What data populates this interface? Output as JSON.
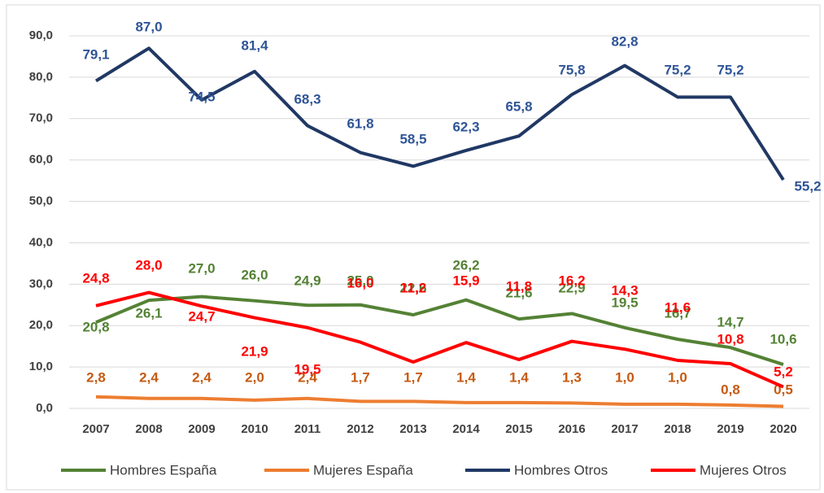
{
  "chart_data": {
    "type": "line",
    "categories": [
      "2007",
      "2008",
      "2009",
      "2010",
      "2011",
      "2012",
      "2013",
      "2014",
      "2015",
      "2016",
      "2017",
      "2018",
      "2019",
      "2020"
    ],
    "series": [
      {
        "name": "Hombres España",
        "color": "#548235",
        "values": [
          20.8,
          26.1,
          27.0,
          26.0,
          24.9,
          25.0,
          22.6,
          26.2,
          21.6,
          22.9,
          19.5,
          16.7,
          14.7,
          10.6
        ],
        "value_labels": [
          "20,8",
          "26,1",
          "27,0",
          "26,0",
          "24,9",
          "25,0",
          "22,6",
          "26,2",
          "21,6",
          "22,9",
          "19,5",
          "16,7",
          "14,7",
          "10,6"
        ]
      },
      {
        "name": "Mujeres España",
        "color": "#ed7d31",
        "values": [
          2.8,
          2.4,
          2.4,
          2.0,
          2.4,
          1.7,
          1.7,
          1.4,
          1.4,
          1.3,
          1.0,
          1.0,
          0.8,
          0.5
        ],
        "value_labels": [
          "2,8",
          "2,4",
          "2,4",
          "2,0",
          "2,4",
          "1,7",
          "1,7",
          "1,4",
          "1,4",
          "1,3",
          "1,0",
          "1,0",
          "0,8",
          "0,5"
        ]
      },
      {
        "name": "Hombres Otros",
        "color": "#203864",
        "values": [
          79.1,
          87.0,
          74.5,
          81.4,
          68.3,
          61.8,
          58.5,
          62.3,
          65.8,
          75.8,
          82.8,
          75.2,
          75.2,
          55.2
        ],
        "value_labels": [
          "79,1",
          "87,0",
          "74,5",
          "81,4",
          "68,3",
          "61,8",
          "58,5",
          "62,3",
          "65,8",
          "75,8",
          "82,8",
          "75,2",
          "75,2",
          "55,2"
        ]
      },
      {
        "name": "Mujeres Otros",
        "color": "#ff0000",
        "values": [
          24.8,
          28.0,
          24.7,
          21.9,
          19.5,
          16.0,
          11.2,
          15.9,
          11.8,
          16.2,
          14.3,
          11.6,
          10.8,
          5.2
        ],
        "value_labels": [
          "24,8",
          "28,0",
          "24,7",
          "21,9",
          "19,5",
          "16,0",
          "11,2",
          "15,9",
          "11,8",
          "16,2",
          "14,3",
          "11,6",
          "10,8",
          "5,2"
        ]
      }
    ],
    "ylim": [
      0,
      90
    ],
    "yticks": [
      {
        "value": 0,
        "label": "0,0"
      },
      {
        "value": 10,
        "label": "10,0"
      },
      {
        "value": 20,
        "label": "20,0"
      },
      {
        "value": 30,
        "label": "30,0"
      },
      {
        "value": 40,
        "label": "40,0"
      },
      {
        "value": 50,
        "label": "50,0"
      },
      {
        "value": 60,
        "label": "60,0"
      },
      {
        "value": 70,
        "label": "70,0"
      },
      {
        "value": 80,
        "label": "80,0"
      },
      {
        "value": 90,
        "label": "90,0"
      }
    ],
    "grid": true,
    "legend": "bottom"
  }
}
